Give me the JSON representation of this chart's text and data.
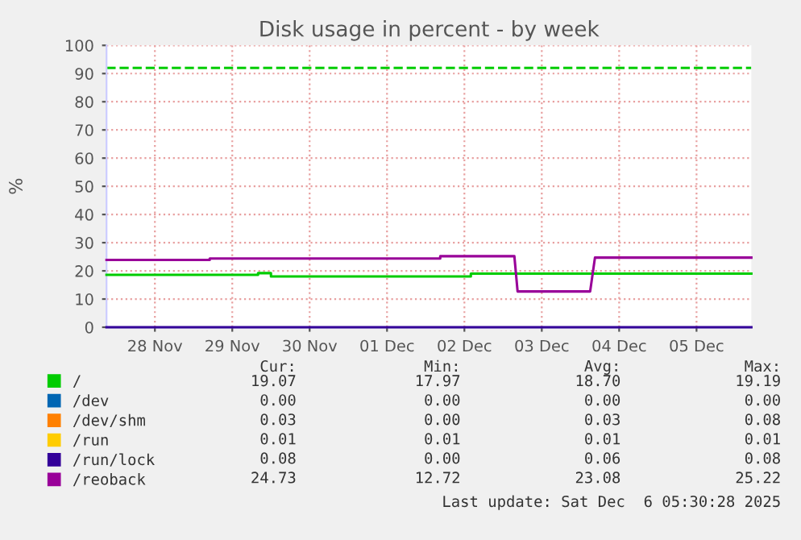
{
  "chart_data": {
    "type": "line",
    "title": "Disk usage in percent - by week",
    "ylabel": "%",
    "xlim": [
      "2025-11-27T21:00",
      "2025-12-06T05:00"
    ],
    "ylim": [
      0,
      100
    ],
    "yticks": [
      0,
      10,
      20,
      30,
      40,
      50,
      60,
      70,
      80,
      90,
      100
    ],
    "xticks": [
      {
        "value": "2025-11-28T12:00",
        "label": "28 Nov"
      },
      {
        "value": "2025-11-29T12:00",
        "label": "29 Nov"
      },
      {
        "value": "2025-11-30T12:00",
        "label": "30 Nov"
      },
      {
        "value": "2025-12-01T12:00",
        "label": "01 Dec"
      },
      {
        "value": "2025-12-02T12:00",
        "label": "02 Dec"
      },
      {
        "value": "2025-12-03T12:00",
        "label": "03 Dec"
      },
      {
        "value": "2025-12-04T12:00",
        "label": "04 Dec"
      },
      {
        "value": "2025-12-05T12:00",
        "label": "05 Dec"
      }
    ],
    "grid": true,
    "legend": "bottom",
    "marker": "none",
    "line_style": "solid",
    "ref_lines": [
      {
        "axis": "y",
        "value": 92,
        "label": null,
        "color": "#00cc00",
        "line_style": "dashed"
      }
    ],
    "series": [
      {
        "name": "/",
        "color": "#00cc00",
        "x": [
          "2025-11-27T21:00",
          "2025-11-29T20:00",
          "2025-11-29T20:00",
          "2025-11-30T00:00",
          "2025-11-30T00:00",
          "2025-12-02T14:00",
          "2025-12-02T14:00",
          "2025-12-06T05:00"
        ],
        "values": [
          18.6,
          18.6,
          19.2,
          19.2,
          18.0,
          18.0,
          19.0,
          19.0
        ]
      },
      {
        "name": "/dev",
        "color": "#0066b3"
      },
      {
        "name": "/dev/shm",
        "color": "#ff8000"
      },
      {
        "name": "/run",
        "color": "#ffcc00"
      },
      {
        "name": "/run/lock",
        "color": "#330099",
        "x": [
          "2025-11-27T21:00",
          "2025-12-06T05:00"
        ],
        "values": [
          0,
          0
        ]
      },
      {
        "name": "/reoback",
        "color": "#990099",
        "x": [
          "2025-11-27T21:00",
          "2025-11-29T05:00",
          "2025-11-29T05:00",
          "2025-12-02T04:30",
          "2025-12-02T04:30",
          "2025-12-03T03:30",
          "2025-12-03T04:30",
          "2025-12-04T03:00",
          "2025-12-04T04:30",
          "2025-12-06T05:00"
        ],
        "values": [
          23.9,
          23.9,
          24.4,
          24.4,
          25.2,
          25.2,
          12.7,
          12.7,
          24.7,
          24.7
        ]
      }
    ],
    "annotations": [
      "Cur:",
      "Min:",
      "Avg:",
      "Max:",
      "19.07",
      "17.97",
      "18.70",
      "19.19",
      "0.00",
      "0.00",
      "0.00",
      "0.00",
      "0.03",
      "0.00",
      "0.03",
      "0.08",
      "0.01",
      "0.01",
      "0.01",
      "0.01",
      "0.08",
      "0.00",
      "0.06",
      "0.08",
      "24.73",
      "12.72",
      "23.08",
      "25.22",
      "Last update: Sat Dec  6 05:30:28 2025"
    ]
  }
}
